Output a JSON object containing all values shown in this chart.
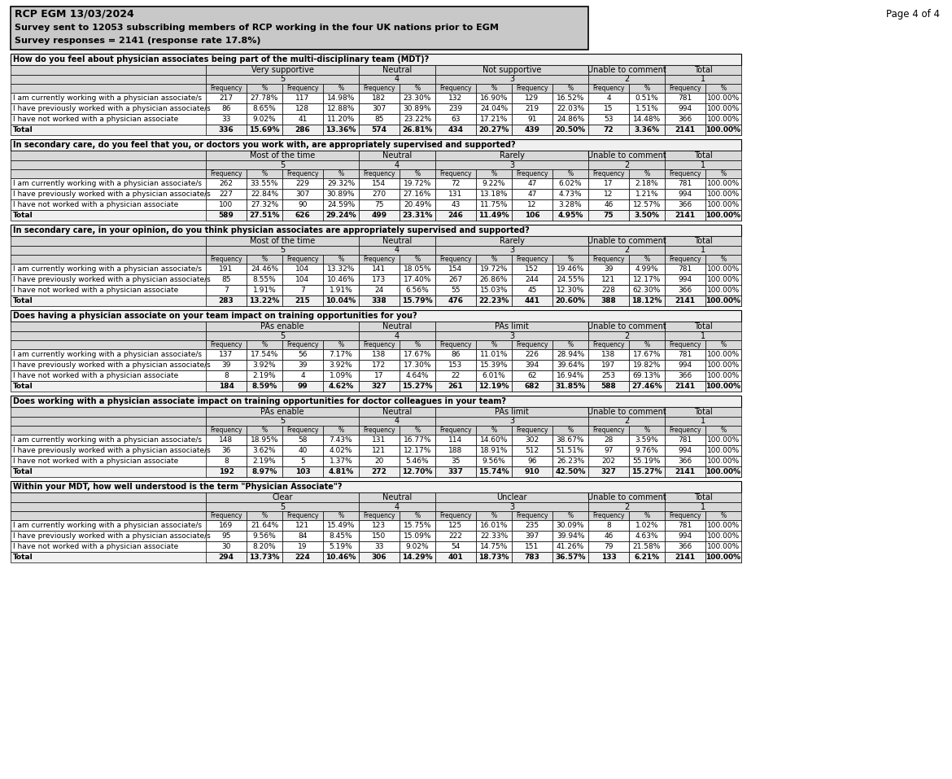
{
  "header_title": "RCP EGM 13/03/2024",
  "header_line2": "Survey sent to 12053 subscribing members of RCP working in the four UK nations prior to EGM",
  "header_line3": "Survey responses = 2141 (response rate 17.8%)",
  "page_label": "Page 4 of 4",
  "tables": [
    {
      "question": "How do you feel about physician associates being part of the multi-disciplinary team (MDT)?",
      "col_groups": [
        {
          "label": "Very supportive",
          "span": 4
        },
        {
          "label": "Neutral",
          "span": 2
        },
        {
          "label": "Not supportive",
          "span": 4
        },
        {
          "label": "Unable to comment",
          "span": 2
        },
        {
          "label": "Total",
          "span": 2
        }
      ],
      "col_headers": [
        "Frequency",
        "%",
        "Frequency",
        "%",
        "Frequency",
        "%",
        "Frequency",
        "%",
        "Frequency",
        "%",
        "Frequency",
        "%",
        "Frequency",
        "%"
      ],
      "rows": [
        {
          "label": "I am currently working with a physician associate/s",
          "values": [
            "217",
            "27.78%",
            "117",
            "14.98%",
            "182",
            "23.30%",
            "132",
            "16.90%",
            "129",
            "16.52%",
            "4",
            "0.51%",
            "781",
            "100.00%"
          ]
        },
        {
          "label": "I have previously worked with a physician associate/s",
          "values": [
            "86",
            "8.65%",
            "128",
            "12.88%",
            "307",
            "30.89%",
            "239",
            "24.04%",
            "219",
            "22.03%",
            "15",
            "1.51%",
            "994",
            "100.00%"
          ]
        },
        {
          "label": "I have not worked with a physician associate",
          "values": [
            "33",
            "9.02%",
            "41",
            "11.20%",
            "85",
            "23.22%",
            "63",
            "17.21%",
            "91",
            "24.86%",
            "53",
            "14.48%",
            "366",
            "100.00%"
          ]
        },
        {
          "label": "Total",
          "values": [
            "336",
            "15.69%",
            "286",
            "13.36%",
            "574",
            "26.81%",
            "434",
            "20.27%",
            "439",
            "20.50%",
            "72",
            "3.36%",
            "2141",
            "100.00%"
          ],
          "bold": true
        }
      ]
    },
    {
      "question": "In secondary care, do you feel that you, or doctors you work with, are appropriately supervised and supported?",
      "col_groups": [
        {
          "label": "Most of the time",
          "span": 4
        },
        {
          "label": "Neutral",
          "span": 2
        },
        {
          "label": "Rarely",
          "span": 4
        },
        {
          "label": "Unable to comment",
          "span": 2
        },
        {
          "label": "Total",
          "span": 2
        }
      ],
      "col_headers": [
        "Frequency",
        "%",
        "Frequency",
        "%",
        "Frequency",
        "%",
        "Frequency",
        "%",
        "Frequency",
        "%",
        "Frequency",
        "%",
        "Frequency",
        "%"
      ],
      "rows": [
        {
          "label": "I am currently working with a physician associate/s",
          "values": [
            "262",
            "33.55%",
            "229",
            "29.32%",
            "154",
            "19.72%",
            "72",
            "9.22%",
            "47",
            "6.02%",
            "17",
            "2.18%",
            "781",
            "100.00%"
          ]
        },
        {
          "label": "I have previously worked with a physician associate/s",
          "values": [
            "227",
            "22.84%",
            "307",
            "30.89%",
            "270",
            "27.16%",
            "131",
            "13.18%",
            "47",
            "4.73%",
            "12",
            "1.21%",
            "994",
            "100.00%"
          ]
        },
        {
          "label": "I have not worked with a physician associate",
          "values": [
            "100",
            "27.32%",
            "90",
            "24.59%",
            "75",
            "20.49%",
            "43",
            "11.75%",
            "12",
            "3.28%",
            "46",
            "12.57%",
            "366",
            "100.00%"
          ]
        },
        {
          "label": "Total",
          "values": [
            "589",
            "27.51%",
            "626",
            "29.24%",
            "499",
            "23.31%",
            "246",
            "11.49%",
            "106",
            "4.95%",
            "75",
            "3.50%",
            "2141",
            "100.00%"
          ],
          "bold": true
        }
      ]
    },
    {
      "question": "In secondary care, in your opinion, do you think physician associates are appropriately supervised and supported?",
      "col_groups": [
        {
          "label": "Most of the time",
          "span": 4
        },
        {
          "label": "Neutral",
          "span": 2
        },
        {
          "label": "Rarely",
          "span": 4
        },
        {
          "label": "Unable to comment",
          "span": 2
        },
        {
          "label": "Total",
          "span": 2
        }
      ],
      "col_headers": [
        "Frequency",
        "%",
        "Frequency",
        "%",
        "Frequency",
        "%",
        "Frequency",
        "%",
        "Frequency",
        "%",
        "Frequency",
        "%",
        "Frequency",
        "%"
      ],
      "rows": [
        {
          "label": "I am currently working with a physician associate/s",
          "values": [
            "191",
            "24.46%",
            "104",
            "13.32%",
            "141",
            "18.05%",
            "154",
            "19.72%",
            "152",
            "19.46%",
            "39",
            "4.99%",
            "781",
            "100.00%"
          ]
        },
        {
          "label": "I have previously worked with a physician associate/s",
          "values": [
            "85",
            "8.55%",
            "104",
            "10.46%",
            "173",
            "17.40%",
            "267",
            "26.86%",
            "244",
            "24.55%",
            "121",
            "12.17%",
            "994",
            "100.00%"
          ]
        },
        {
          "label": "I have not worked with a physician associate",
          "values": [
            "7",
            "1.91%",
            "7",
            "1.91%",
            "24",
            "6.56%",
            "55",
            "15.03%",
            "45",
            "12.30%",
            "228",
            "62.30%",
            "366",
            "100.00%"
          ]
        },
        {
          "label": "Total",
          "values": [
            "283",
            "13.22%",
            "215",
            "10.04%",
            "338",
            "15.79%",
            "476",
            "22.23%",
            "441",
            "20.60%",
            "388",
            "18.12%",
            "2141",
            "100.00%"
          ],
          "bold": true
        }
      ]
    },
    {
      "question": "Does having a physician associate on your team impact on training opportunities for you?",
      "col_groups": [
        {
          "label": "PAs enable",
          "span": 4
        },
        {
          "label": "Neutral",
          "span": 2
        },
        {
          "label": "PAs limit",
          "span": 4
        },
        {
          "label": "Unable to comment",
          "span": 2
        },
        {
          "label": "Total",
          "span": 2
        }
      ],
      "col_headers": [
        "Frequency",
        "%",
        "Frequency",
        "%",
        "Frequency",
        "%",
        "Frequency",
        "%",
        "Frequency",
        "%",
        "Frequency",
        "%",
        "Frequency",
        "%"
      ],
      "rows": [
        {
          "label": "I am currently working with a physician associate/s",
          "values": [
            "137",
            "17.54%",
            "56",
            "7.17%",
            "138",
            "17.67%",
            "86",
            "11.01%",
            "226",
            "28.94%",
            "138",
            "17.67%",
            "781",
            "100.00%"
          ]
        },
        {
          "label": "I have previously worked with a physician associate/s",
          "values": [
            "39",
            "3.92%",
            "39",
            "3.92%",
            "172",
            "17.30%",
            "153",
            "15.39%",
            "394",
            "39.64%",
            "197",
            "19.82%",
            "994",
            "100.00%"
          ]
        },
        {
          "label": "I have not worked with a physician associate",
          "values": [
            "8",
            "2.19%",
            "4",
            "1.09%",
            "17",
            "4.64%",
            "22",
            "6.01%",
            "62",
            "16.94%",
            "253",
            "69.13%",
            "366",
            "100.00%"
          ]
        },
        {
          "label": "Total",
          "values": [
            "184",
            "8.59%",
            "99",
            "4.62%",
            "327",
            "15.27%",
            "261",
            "12.19%",
            "682",
            "31.85%",
            "588",
            "27.46%",
            "2141",
            "100.00%"
          ],
          "bold": true
        }
      ]
    },
    {
      "question": "Does working with a physician associate impact on training opportunities for doctor colleagues in your team?",
      "col_groups": [
        {
          "label": "PAs enable",
          "span": 4
        },
        {
          "label": "Neutral",
          "span": 2
        },
        {
          "label": "PAs limit",
          "span": 4
        },
        {
          "label": "Unable to comment",
          "span": 2
        },
        {
          "label": "Total",
          "span": 2
        }
      ],
      "col_headers": [
        "Frequency",
        "%",
        "Frequency",
        "%",
        "Frequency",
        "%",
        "Frequency",
        "%",
        "Frequency",
        "%",
        "Frequency",
        "%",
        "Frequency",
        "%"
      ],
      "rows": [
        {
          "label": "I am currently working with a physician associate/s",
          "values": [
            "148",
            "18.95%",
            "58",
            "7.43%",
            "131",
            "16.77%",
            "114",
            "14.60%",
            "302",
            "38.67%",
            "28",
            "3.59%",
            "781",
            "100.00%"
          ]
        },
        {
          "label": "I have previously worked with a physician associate/s",
          "values": [
            "36",
            "3.62%",
            "40",
            "4.02%",
            "121",
            "12.17%",
            "188",
            "18.91%",
            "512",
            "51.51%",
            "97",
            "9.76%",
            "994",
            "100.00%"
          ]
        },
        {
          "label": "I have not worked with a physician associate",
          "values": [
            "8",
            "2.19%",
            "5",
            "1.37%",
            "20",
            "5.46%",
            "35",
            "9.56%",
            "96",
            "26.23%",
            "202",
            "55.19%",
            "366",
            "100.00%"
          ]
        },
        {
          "label": "Total",
          "values": [
            "192",
            "8.97%",
            "103",
            "4.81%",
            "272",
            "12.70%",
            "337",
            "15.74%",
            "910",
            "42.50%",
            "327",
            "15.27%",
            "2141",
            "100.00%"
          ],
          "bold": true
        }
      ]
    },
    {
      "question": "Within your MDT, how well understood is the term \"Physician Associate\"?",
      "col_groups": [
        {
          "label": "Clear",
          "span": 4
        },
        {
          "label": "Neutral",
          "span": 2
        },
        {
          "label": "Unclear",
          "span": 4
        },
        {
          "label": "Unable to comment",
          "span": 2
        },
        {
          "label": "Total",
          "span": 2
        }
      ],
      "col_headers": [
        "Frequency",
        "%",
        "Frequency",
        "%",
        "Frequency",
        "%",
        "Frequency",
        "%",
        "Frequency",
        "%",
        "Frequency",
        "%",
        "Frequency",
        "%"
      ],
      "rows": [
        {
          "label": "I am currently working with a physician associate/s",
          "values": [
            "169",
            "21.64%",
            "121",
            "15.49%",
            "123",
            "15.75%",
            "125",
            "16.01%",
            "235",
            "30.09%",
            "8",
            "1.02%",
            "781",
            "100.00%"
          ]
        },
        {
          "label": "I have previously worked with a physician associate/s",
          "values": [
            "95",
            "9.56%",
            "84",
            "8.45%",
            "150",
            "15.09%",
            "222",
            "22.33%",
            "397",
            "39.94%",
            "46",
            "4.63%",
            "994",
            "100.00%"
          ]
        },
        {
          "label": "I have not worked with a physician associate",
          "values": [
            "30",
            "8.20%",
            "19",
            "5.19%",
            "33",
            "9.02%",
            "54",
            "14.75%",
            "151",
            "41.26%",
            "79",
            "21.58%",
            "366",
            "100.00%"
          ]
        },
        {
          "label": "Total",
          "values": [
            "294",
            "13.73%",
            "224",
            "10.46%",
            "306",
            "14.29%",
            "401",
            "18.73%",
            "783",
            "36.57%",
            "133",
            "6.21%",
            "2141",
            "100.00%"
          ],
          "bold": true
        }
      ]
    }
  ]
}
